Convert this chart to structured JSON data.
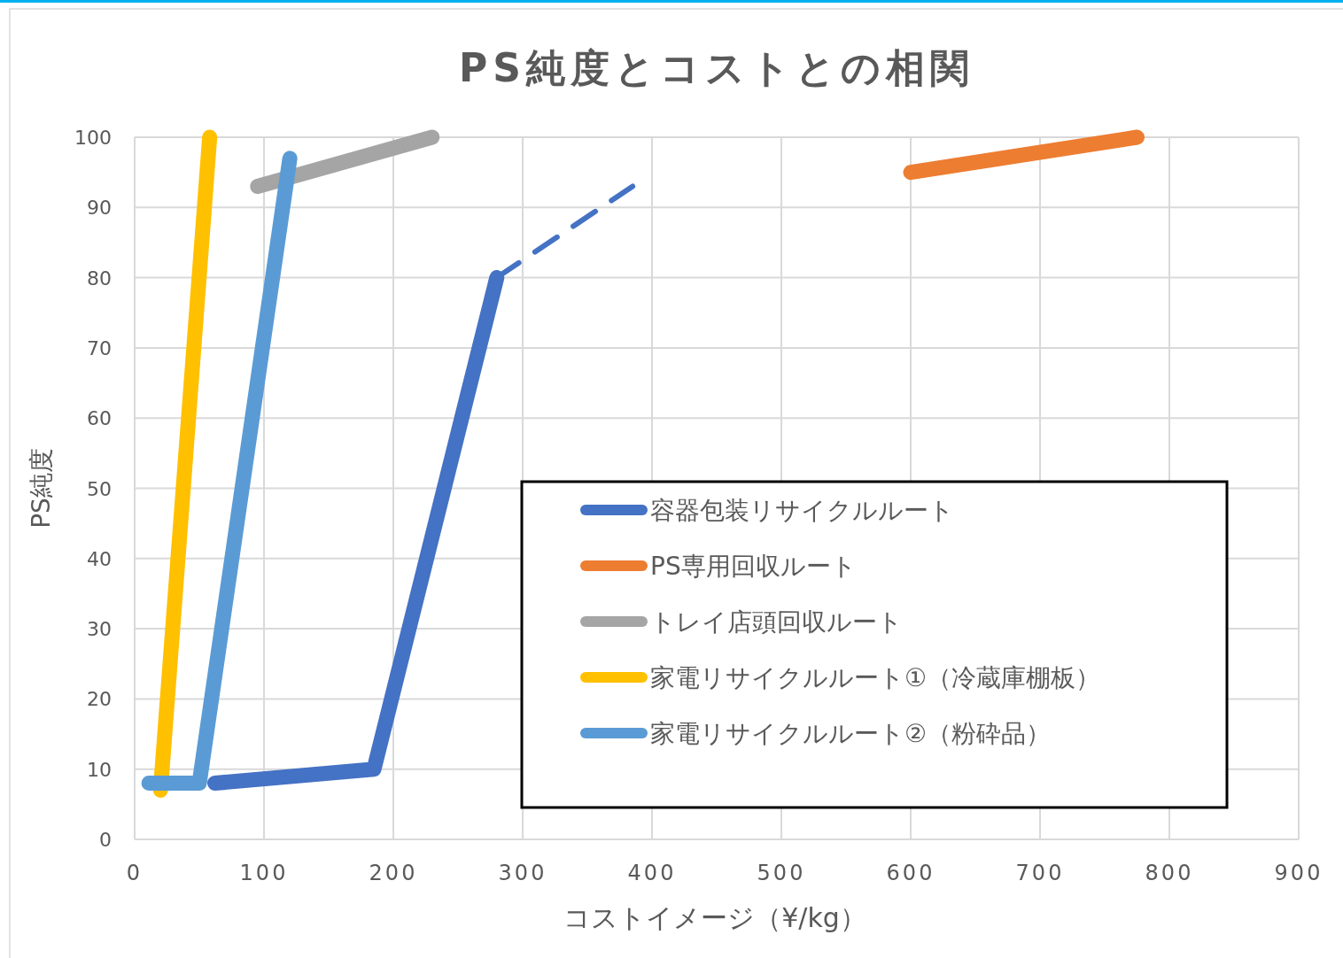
{
  "chart_data": {
    "type": "line",
    "title": "PS純度とコストとの相関",
    "xlabel": "コストイメージ（¥/kg）",
    "ylabel": "PS純度",
    "xlim": [
      0,
      900
    ],
    "ylim": [
      0,
      100
    ],
    "xticks": [
      0,
      100,
      200,
      300,
      400,
      500,
      600,
      700,
      800,
      900
    ],
    "yticks": [
      0,
      10,
      20,
      30,
      40,
      50,
      60,
      70,
      80,
      90,
      100
    ],
    "grid": true,
    "legend": "bottom right",
    "series": [
      {
        "name": "容器包装リサイクルルート",
        "color": "#4472c4",
        "x": [
          62,
          185,
          280
        ],
        "values": [
          8,
          10,
          80
        ]
      },
      {
        "color": "#4472c4",
        "line_style": "dashed",
        "x": [
          280,
          385
        ],
        "values": [
          80,
          93
        ]
      },
      {
        "name": "PS専用回収ルート",
        "color": "#ed7d31",
        "x": [
          600,
          775
        ],
        "values": [
          95,
          100
        ]
      },
      {
        "name": "トレイ店頭回収ルート",
        "color": "#a5a5a5",
        "x": [
          95,
          230
        ],
        "values": [
          93,
          100
        ]
      },
      {
        "name": "家電リサイクルルート①（冷蔵庫棚板）",
        "color": "#ffc000",
        "x": [
          20,
          58
        ],
        "values": [
          7,
          100
        ]
      },
      {
        "name": "家電リサイクルルート②（粉砕品）",
        "color": "#5b9bd5",
        "x": [
          11,
          50,
          120
        ],
        "values": [
          8,
          8,
          97
        ]
      }
    ]
  }
}
